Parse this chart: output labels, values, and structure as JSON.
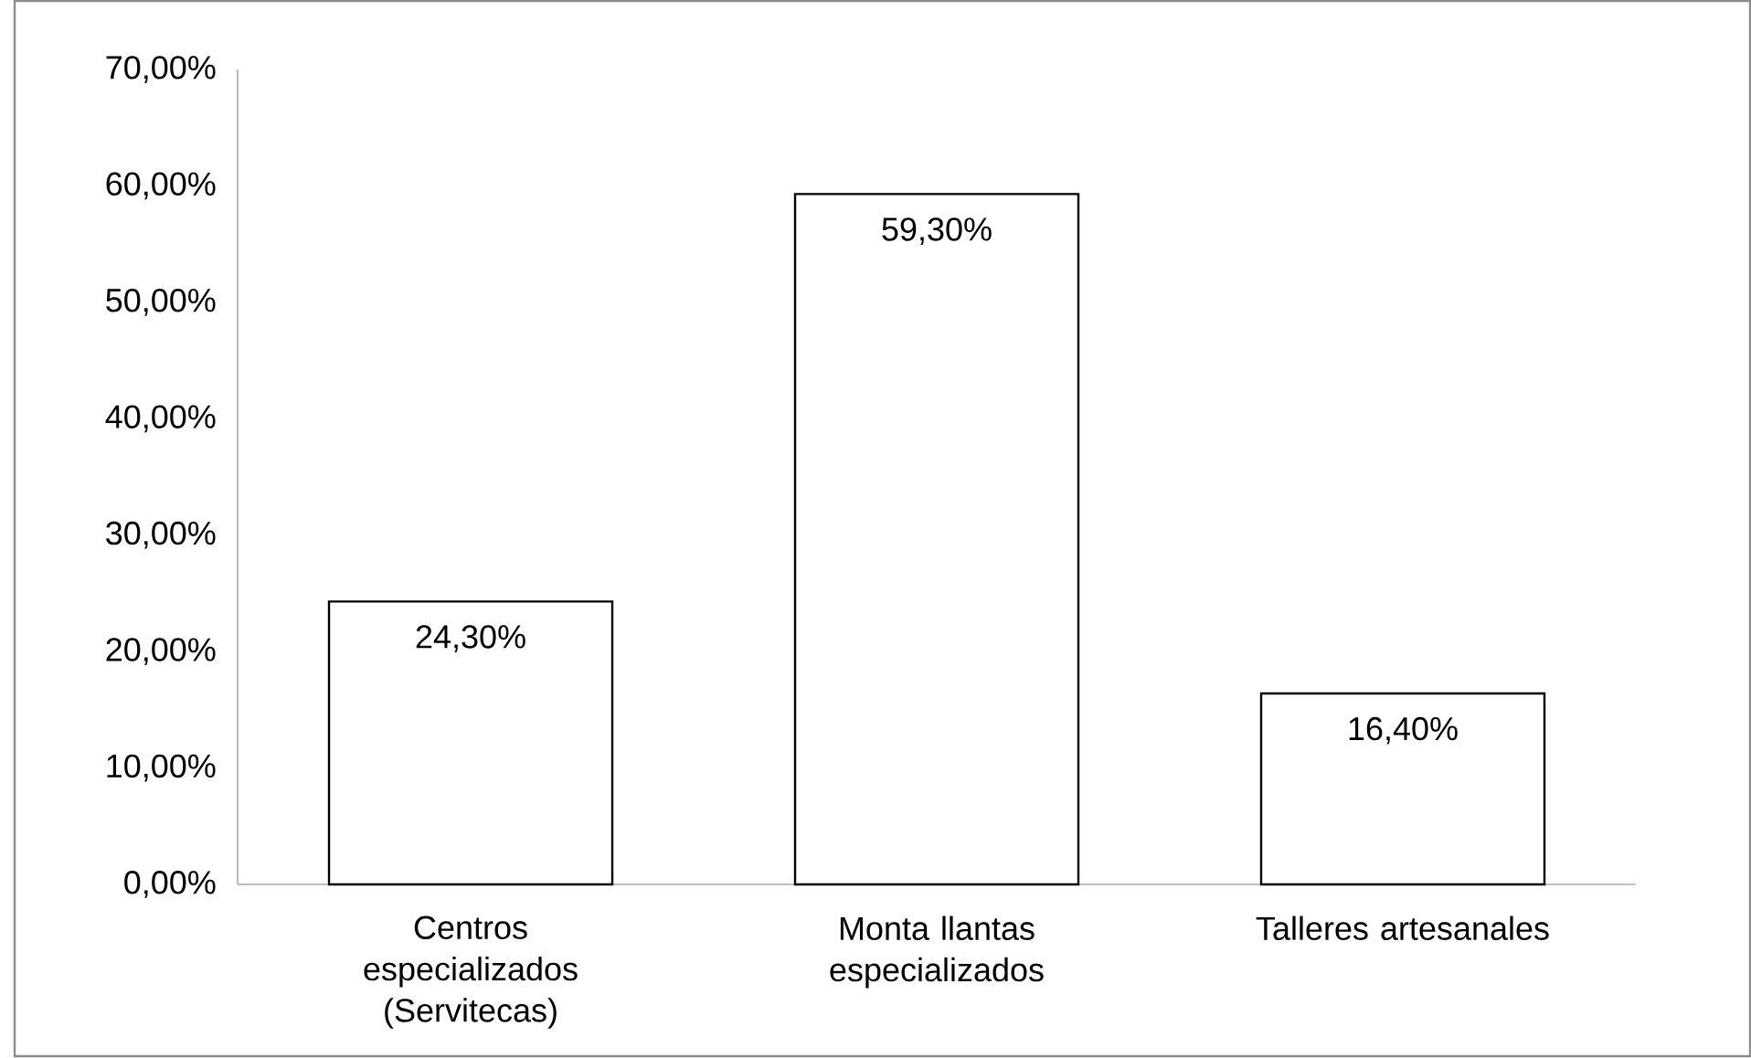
{
  "chart_data": {
    "type": "bar",
    "categories": [
      "Centros especializados (Servitecas)",
      "Monta llantas especializados",
      "Talleres artesanales"
    ],
    "values": [
      24.3,
      59.3,
      16.4
    ],
    "value_labels": [
      "24,30%",
      "59,30%",
      "16,40%"
    ],
    "color": "#ffffff",
    "ylim": [
      0,
      70
    ],
    "yticks": [
      {
        "value": 0,
        "label": "0,00%"
      },
      {
        "value": 10,
        "label": "10,00%"
      },
      {
        "value": 20,
        "label": "20,00%"
      },
      {
        "value": 30,
        "label": "30,00%"
      },
      {
        "value": 40,
        "label": "40,00%"
      },
      {
        "value": 50,
        "label": "50,00%"
      },
      {
        "value": 60,
        "label": "60,00%"
      },
      {
        "value": 70,
        "label": "70,00%"
      }
    ],
    "grid": false
  }
}
